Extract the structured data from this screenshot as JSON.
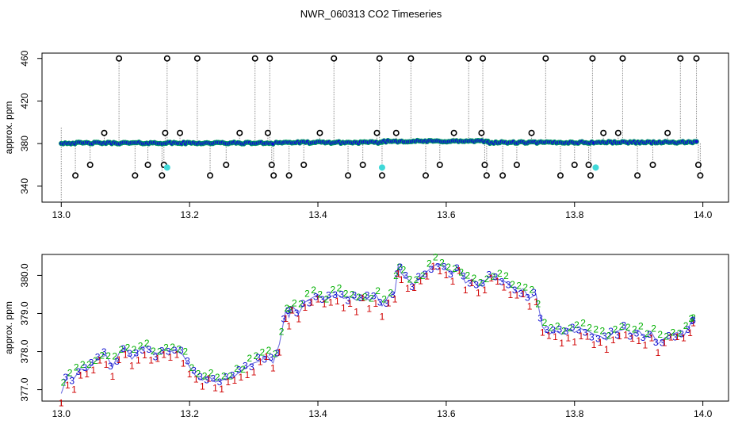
{
  "title": "NWR_060313  CO2 Timeseries",
  "colors": {
    "axis": "#000000",
    "drop": "#8c8c8c",
    "outlier": "#000000",
    "main_fill": "#1010d0",
    "main_edge": "#00a060",
    "cyan": "#40d8d8",
    "ch1": "#d00000",
    "ch2": "#00b000",
    "ch3": "#1010d0",
    "ch_line": "#7070e0"
  },
  "chart_data": [
    {
      "type": "scatter",
      "title": "NWR_060313  CO2 Timeseries",
      "xlabel": "",
      "ylabel": "approx. ppm",
      "xlim": [
        12.97,
        14.04
      ],
      "ylim": [
        325,
        465
      ],
      "xticks": [
        "13.0",
        "13.2",
        "13.4",
        "13.6",
        "13.8",
        "14.0"
      ],
      "yticks": [
        "340",
        "380",
        "420",
        "460"
      ],
      "baseline_segments": [
        {
          "x0": 13.0,
          "x1": 13.33,
          "y": 380.5
        },
        {
          "x0": 13.335,
          "x1": 13.5,
          "y": 381.0
        },
        {
          "x0": 13.5,
          "x1": 13.665,
          "y": 382.2
        },
        {
          "x0": 13.665,
          "x1": 13.83,
          "y": 381.0
        },
        {
          "x0": 13.835,
          "x1": 13.99,
          "y": 381.2
        }
      ],
      "outliers": [
        {
          "x": 13.022,
          "y": 350
        },
        {
          "x": 13.045,
          "y": 360
        },
        {
          "x": 13.067,
          "y": 390
        },
        {
          "x": 13.09,
          "y": 460
        },
        {
          "x": 13.115,
          "y": 350
        },
        {
          "x": 13.135,
          "y": 360
        },
        {
          "x": 13.157,
          "y": 350
        },
        {
          "x": 13.16,
          "y": 360
        },
        {
          "x": 13.162,
          "y": 390
        },
        {
          "x": 13.165,
          "y": 460
        },
        {
          "x": 13.185,
          "y": 390
        },
        {
          "x": 13.212,
          "y": 460
        },
        {
          "x": 13.232,
          "y": 350
        },
        {
          "x": 13.257,
          "y": 360
        },
        {
          "x": 13.278,
          "y": 390
        },
        {
          "x": 13.302,
          "y": 460
        },
        {
          "x": 13.322,
          "y": 390
        },
        {
          "x": 13.325,
          "y": 460
        },
        {
          "x": 13.328,
          "y": 360
        },
        {
          "x": 13.331,
          "y": 350
        },
        {
          "x": 13.355,
          "y": 350
        },
        {
          "x": 13.378,
          "y": 360
        },
        {
          "x": 13.403,
          "y": 390
        },
        {
          "x": 13.425,
          "y": 460
        },
        {
          "x": 13.447,
          "y": 350
        },
        {
          "x": 13.47,
          "y": 360
        },
        {
          "x": 13.492,
          "y": 390
        },
        {
          "x": 13.496,
          "y": 460
        },
        {
          "x": 13.5,
          "y": 350
        },
        {
          "x": 13.522,
          "y": 390
        },
        {
          "x": 13.545,
          "y": 460
        },
        {
          "x": 13.568,
          "y": 350
        },
        {
          "x": 13.59,
          "y": 360
        },
        {
          "x": 13.612,
          "y": 390
        },
        {
          "x": 13.635,
          "y": 460
        },
        {
          "x": 13.655,
          "y": 390
        },
        {
          "x": 13.657,
          "y": 460
        },
        {
          "x": 13.66,
          "y": 360
        },
        {
          "x": 13.663,
          "y": 350
        },
        {
          "x": 13.688,
          "y": 350
        },
        {
          "x": 13.71,
          "y": 360
        },
        {
          "x": 13.733,
          "y": 390
        },
        {
          "x": 13.755,
          "y": 460
        },
        {
          "x": 13.778,
          "y": 350
        },
        {
          "x": 13.8,
          "y": 360
        },
        {
          "x": 13.822,
          "y": 360
        },
        {
          "x": 13.825,
          "y": 350
        },
        {
          "x": 13.828,
          "y": 460
        },
        {
          "x": 13.845,
          "y": 390
        },
        {
          "x": 13.868,
          "y": 390
        },
        {
          "x": 13.875,
          "y": 460
        },
        {
          "x": 13.898,
          "y": 350
        },
        {
          "x": 13.922,
          "y": 360
        },
        {
          "x": 13.945,
          "y": 390
        },
        {
          "x": 13.965,
          "y": 460
        },
        {
          "x": 13.99,
          "y": 460
        },
        {
          "x": 13.993,
          "y": 360
        },
        {
          "x": 13.996,
          "y": 350
        }
      ],
      "cyan_points": [
        {
          "x": 13.165,
          "y": 357.5
        },
        {
          "x": 13.5,
          "y": 357.5
        },
        {
          "x": 13.833,
          "y": 357.5
        }
      ]
    },
    {
      "type": "line",
      "title": "",
      "xlabel": "",
      "ylabel": "approx. ppm",
      "xlim": [
        12.97,
        14.04
      ],
      "ylim": [
        376.7,
        380.55
      ],
      "xticks": [
        "13.0",
        "13.2",
        "13.4",
        "13.6",
        "13.8",
        "14.0"
      ],
      "yticks": [
        "377.0",
        "378.0",
        "379.0",
        "380.0"
      ],
      "series_labels": [
        "1",
        "2",
        "3"
      ],
      "trace": [
        [
          13.0,
          376.9
        ],
        [
          13.01,
          377.4
        ],
        [
          13.02,
          377.3
        ],
        [
          13.03,
          377.55
        ],
        [
          13.04,
          377.5
        ],
        [
          13.05,
          377.7
        ],
        [
          13.06,
          377.85
        ],
        [
          13.07,
          377.9
        ],
        [
          13.08,
          377.6
        ],
        [
          13.09,
          377.95
        ],
        [
          13.1,
          378.1
        ],
        [
          13.11,
          377.8
        ],
        [
          13.12,
          378.0
        ],
        [
          13.13,
          378.15
        ],
        [
          13.14,
          378.0
        ],
        [
          13.15,
          377.95
        ],
        [
          13.16,
          378.05
        ],
        [
          13.17,
          378.0
        ],
        [
          13.18,
          378.05
        ],
        [
          13.19,
          377.9
        ],
        [
          13.2,
          377.6
        ],
        [
          13.21,
          377.35
        ],
        [
          13.22,
          377.25
        ],
        [
          13.23,
          377.35
        ],
        [
          13.24,
          377.2
        ],
        [
          13.25,
          377.25
        ],
        [
          13.26,
          377.3
        ],
        [
          13.27,
          377.35
        ],
        [
          13.28,
          377.5
        ],
        [
          13.29,
          377.6
        ],
        [
          13.3,
          377.7
        ],
        [
          13.31,
          377.75
        ],
        [
          13.32,
          377.9
        ],
        [
          13.33,
          377.7
        ],
        [
          13.34,
          378.2
        ],
        [
          13.35,
          379.1
        ],
        [
          13.355,
          378.9
        ],
        [
          13.36,
          379.2
        ],
        [
          13.37,
          379.0
        ],
        [
          13.38,
          379.3
        ],
        [
          13.39,
          379.4
        ],
        [
          13.4,
          379.5
        ],
        [
          13.41,
          379.35
        ],
        [
          13.42,
          379.45
        ],
        [
          13.43,
          379.5
        ],
        [
          13.44,
          379.4
        ],
        [
          13.45,
          379.45
        ],
        [
          13.46,
          379.35
        ],
        [
          13.47,
          379.45
        ],
        [
          13.48,
          379.35
        ],
        [
          13.49,
          379.5
        ],
        [
          13.5,
          379.2
        ],
        [
          13.51,
          379.45
        ],
        [
          13.52,
          379.55
        ],
        [
          13.525,
          380.25
        ],
        [
          13.53,
          380.05
        ],
        [
          13.54,
          379.9
        ],
        [
          13.55,
          379.75
        ],
        [
          13.56,
          379.95
        ],
        [
          13.57,
          380.1
        ],
        [
          13.58,
          380.25
        ],
        [
          13.59,
          380.3
        ],
        [
          13.6,
          380.15
        ],
        [
          13.61,
          380.05
        ],
        [
          13.62,
          380.2
        ],
        [
          13.63,
          379.8
        ],
        [
          13.64,
          379.9
        ],
        [
          13.65,
          379.7
        ],
        [
          13.66,
          379.85
        ],
        [
          13.67,
          380.0
        ],
        [
          13.68,
          379.9
        ],
        [
          13.69,
          379.85
        ],
        [
          13.7,
          379.75
        ],
        [
          13.71,
          379.55
        ],
        [
          13.72,
          379.65
        ],
        [
          13.73,
          379.4
        ],
        [
          13.74,
          379.5
        ],
        [
          13.75,
          378.65
        ],
        [
          13.76,
          378.45
        ],
        [
          13.77,
          378.55
        ],
        [
          13.78,
          378.45
        ],
        [
          13.79,
          378.6
        ],
        [
          13.8,
          378.5
        ],
        [
          13.81,
          378.6
        ],
        [
          13.82,
          378.55
        ],
        [
          13.83,
          378.45
        ],
        [
          13.84,
          378.4
        ],
        [
          13.85,
          378.3
        ],
        [
          13.86,
          378.5
        ],
        [
          13.87,
          378.55
        ],
        [
          13.88,
          378.6
        ],
        [
          13.89,
          378.45
        ],
        [
          13.9,
          378.55
        ],
        [
          13.91,
          378.35
        ],
        [
          13.92,
          378.5
        ],
        [
          13.93,
          378.2
        ],
        [
          13.94,
          378.35
        ],
        [
          13.95,
          378.45
        ],
        [
          13.96,
          378.5
        ],
        [
          13.97,
          378.4
        ],
        [
          13.98,
          378.7
        ],
        [
          13.985,
          378.85
        ]
      ]
    }
  ]
}
